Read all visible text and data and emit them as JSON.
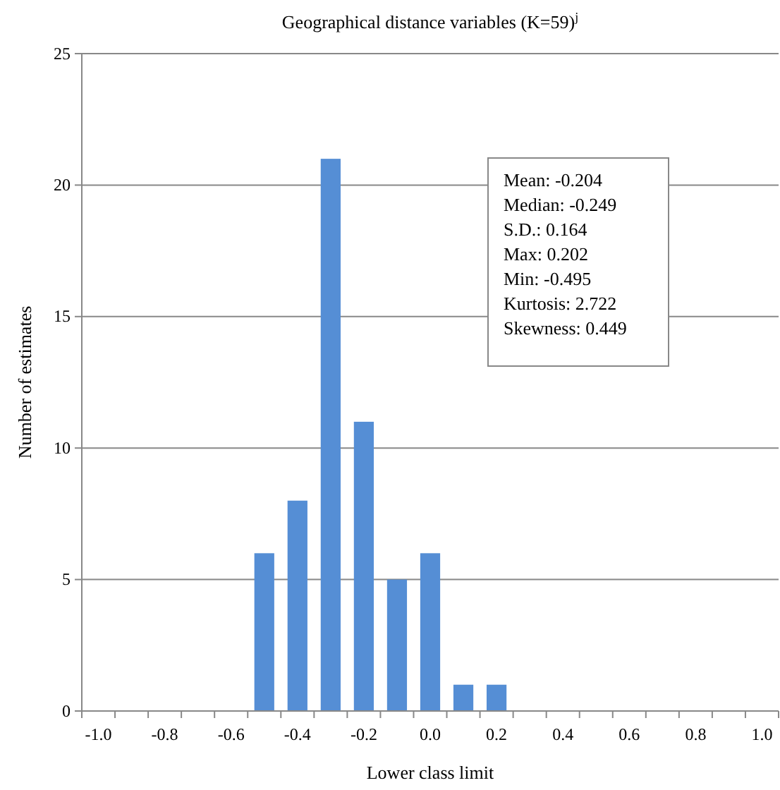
{
  "chart_data": {
    "type": "bar",
    "title": "Geographical distance variables (K=59)$^{j}$",
    "xlabel": "Lower class limit",
    "ylabel": "Number of estimates",
    "categories": [
      "-1.0",
      null,
      "-0.8",
      null,
      "-0.6",
      null,
      "-0.4",
      null,
      "-0.2",
      null,
      "0.0",
      null,
      "0.2",
      null,
      "0.4",
      null,
      "0.6",
      null,
      "0.8",
      null,
      "1.0"
    ],
    "values": [
      0,
      0,
      0,
      0,
      0,
      6,
      8,
      21,
      11,
      5,
      6,
      1,
      1,
      0,
      0,
      0,
      0,
      0,
      0,
      0,
      0
    ],
    "color": "#558ed5",
    "ylim": [
      0,
      25
    ],
    "yticks": [
      0,
      5,
      10,
      15,
      20,
      25
    ],
    "grid": "y",
    "annotations": [
      "Mean: -0.204",
      "Median: -0.249",
      "S.D.: 0.164",
      "Max: 0.202",
      "Min: -0.495",
      "Kurtosis: 2.722",
      "Skewness: 0.449"
    ]
  }
}
